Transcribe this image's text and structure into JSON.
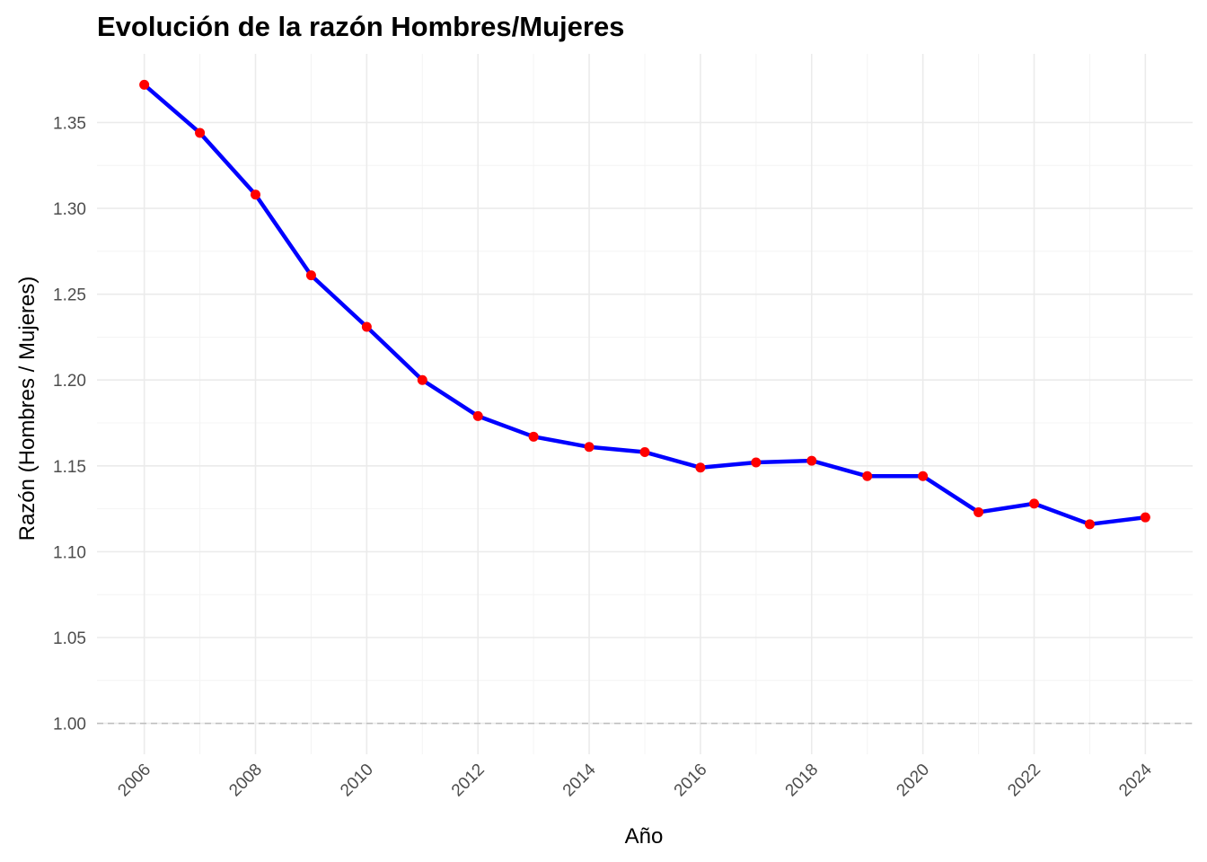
{
  "chart_data": {
    "type": "line",
    "title": "Evolución de la razón Hombres/Mujeres",
    "xlabel": "Año",
    "ylabel": "Razón (Hombres / Mujeres)",
    "x": [
      2006,
      2007,
      2008,
      2009,
      2010,
      2011,
      2012,
      2013,
      2014,
      2015,
      2016,
      2017,
      2018,
      2019,
      2020,
      2021,
      2022,
      2023,
      2024
    ],
    "series": [
      {
        "values": [
          1.372,
          1.344,
          1.308,
          1.261,
          1.231,
          1.2,
          1.179,
          1.167,
          1.161,
          1.158,
          1.149,
          1.152,
          1.153,
          1.144,
          1.144,
          1.123,
          1.128,
          1.116,
          1.12
        ],
        "line_color": "#0000ff",
        "marker_color": "#ff0000"
      }
    ],
    "x_ticks": [
      "2006",
      "2008",
      "2010",
      "2012",
      "2014",
      "2016",
      "2018",
      "2020",
      "2022",
      "2024"
    ],
    "y_ticks": [
      "1.00",
      "1.05",
      "1.10",
      "1.15",
      "1.20",
      "1.25",
      "1.30",
      "1.35"
    ],
    "xlim": [
      2005.15,
      2024.85
    ],
    "ylim": [
      0.982,
      1.39
    ],
    "reference_line": {
      "y": 1.0,
      "style": "dashed",
      "color": "#bdbdbd"
    },
    "grid": true,
    "legend": "none"
  }
}
